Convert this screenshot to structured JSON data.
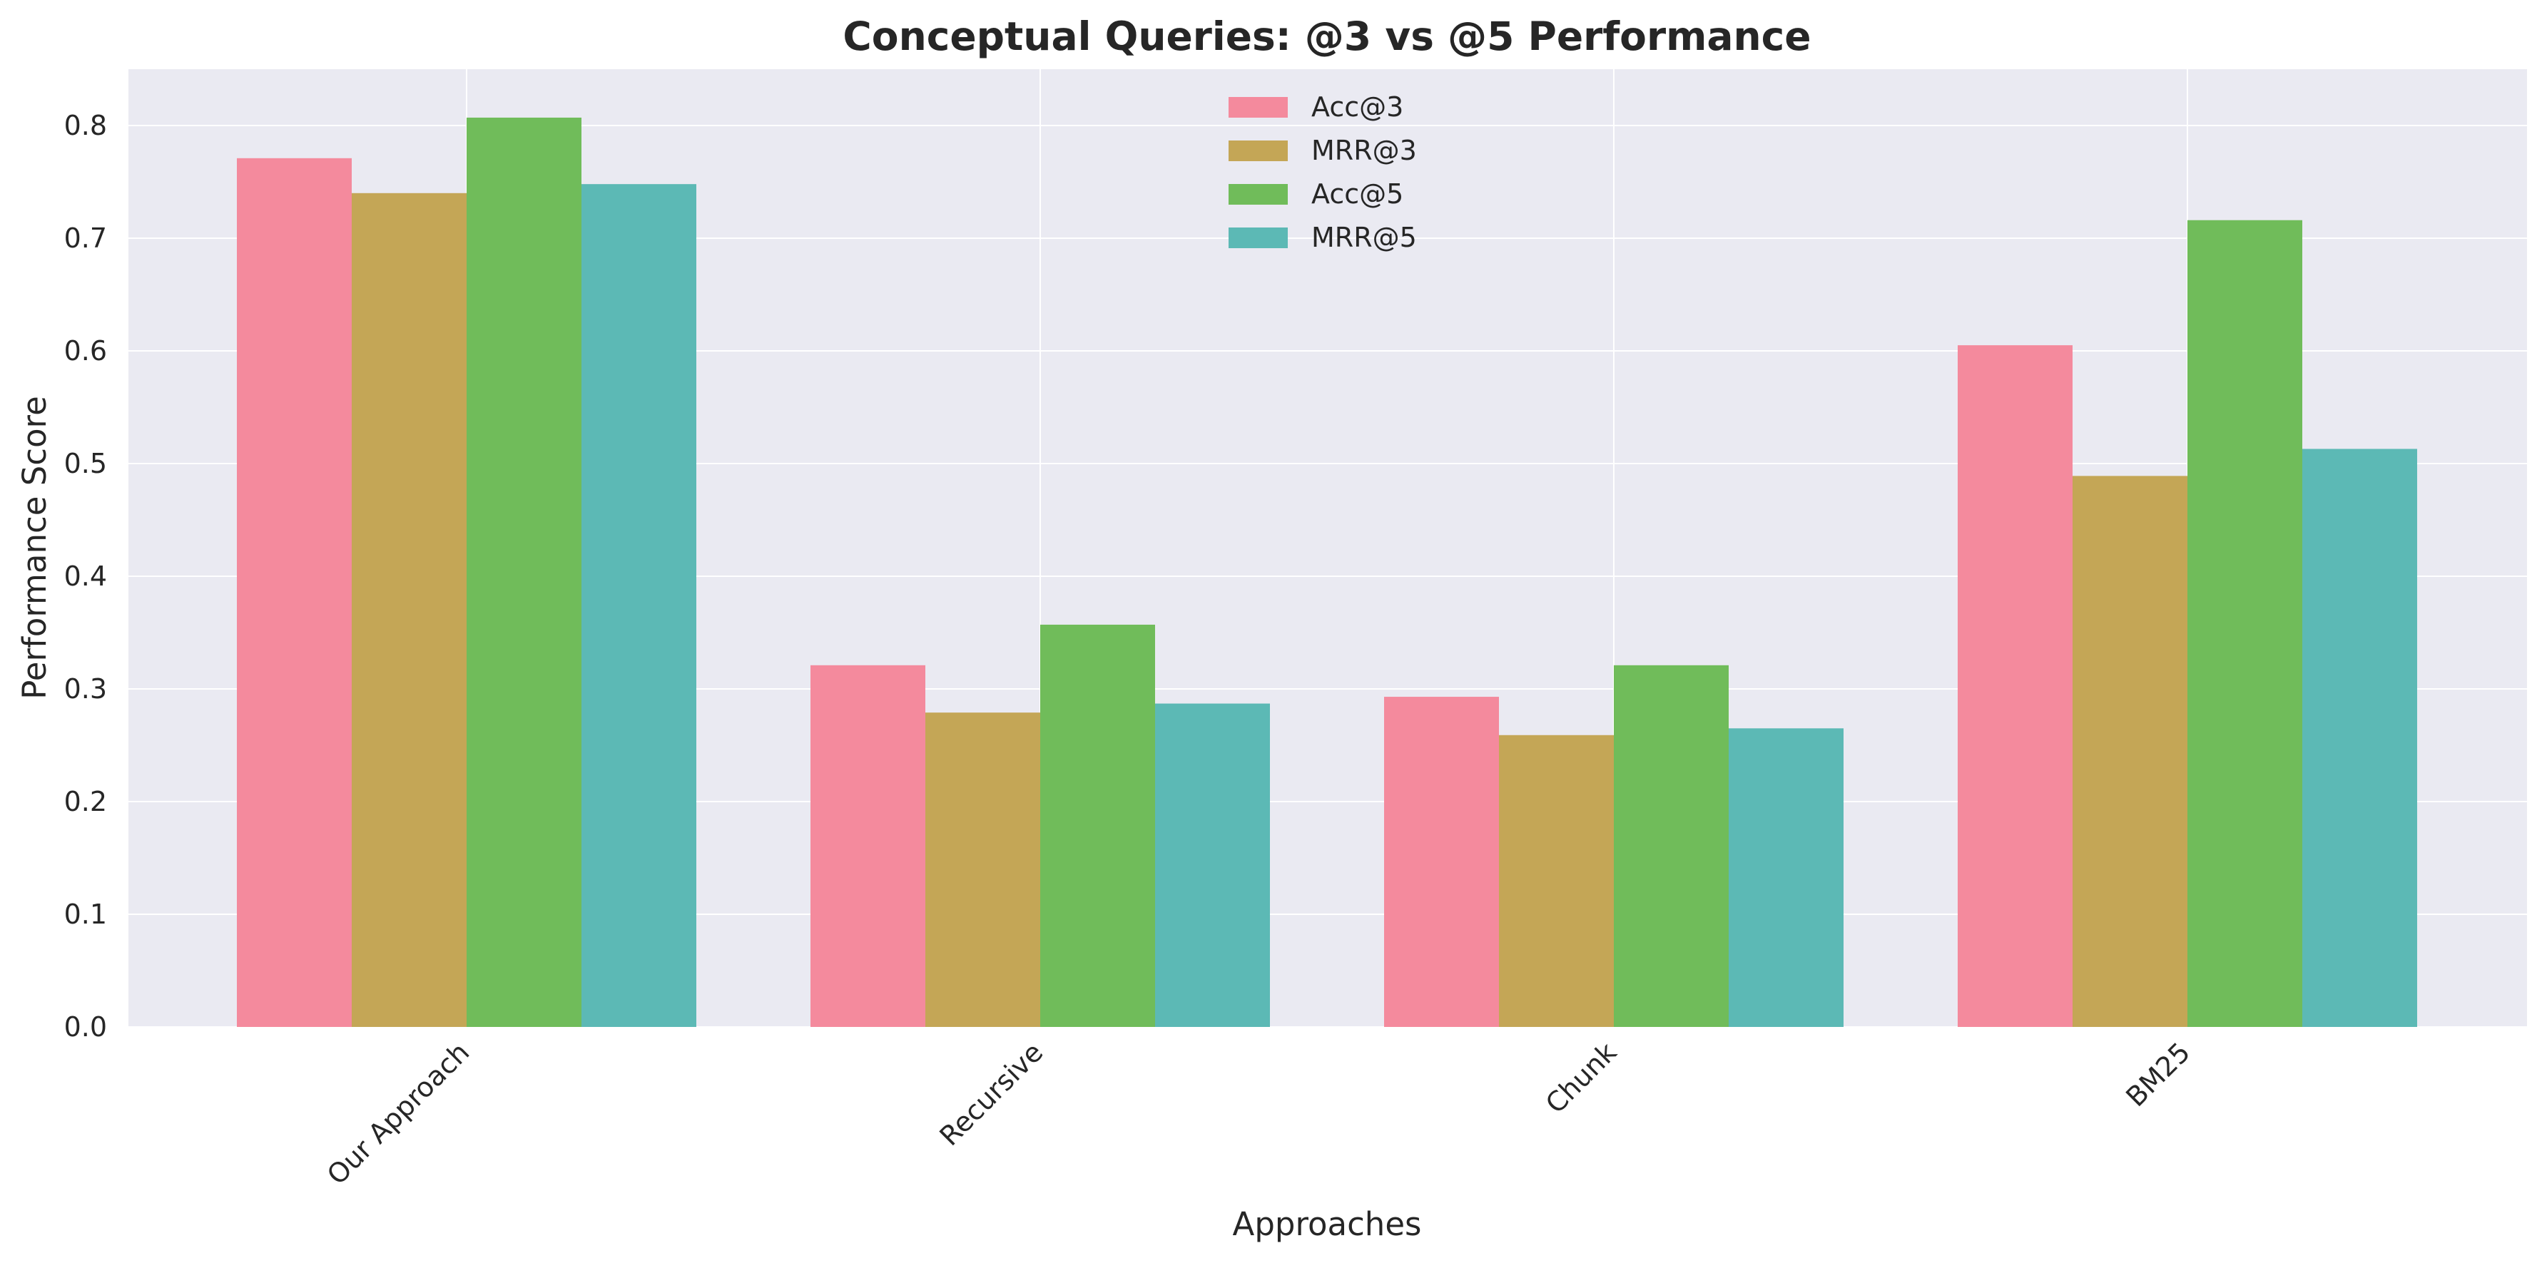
{
  "chart_data": {
    "type": "bar",
    "title": "Conceptual Queries: @3 vs @5 Performance",
    "xlabel": "Approaches",
    "ylabel": "Performance Score",
    "ylim": [
      0,
      0.85
    ],
    "yticks": [
      0.0,
      0.1,
      0.2,
      0.3,
      0.4,
      0.5,
      0.6,
      0.7,
      0.8
    ],
    "ytick_labels": [
      "0.0",
      "0.1",
      "0.2",
      "0.3",
      "0.4",
      "0.5",
      "0.6",
      "0.7",
      "0.8"
    ],
    "categories": [
      "Our Approach",
      "Recursive",
      "Chunk",
      "BM25"
    ],
    "series": [
      {
        "name": "Acc@3",
        "color": "#f48a9d",
        "values": [
          0.771,
          0.321,
          0.293,
          0.605
        ]
      },
      {
        "name": "MRR@3",
        "color": "#c4a656",
        "values": [
          0.74,
          0.279,
          0.259,
          0.489
        ]
      },
      {
        "name": "Acc@5",
        "color": "#70bc5a",
        "values": [
          0.807,
          0.357,
          0.321,
          0.716
        ]
      },
      {
        "name": "MRR@5",
        "color": "#5cb9b5",
        "values": [
          0.748,
          0.287,
          0.265,
          0.513
        ]
      }
    ],
    "legend_position": "top-center",
    "grid": true,
    "background_color": "#eaeaf2",
    "grid_color": "#ffffff"
  }
}
